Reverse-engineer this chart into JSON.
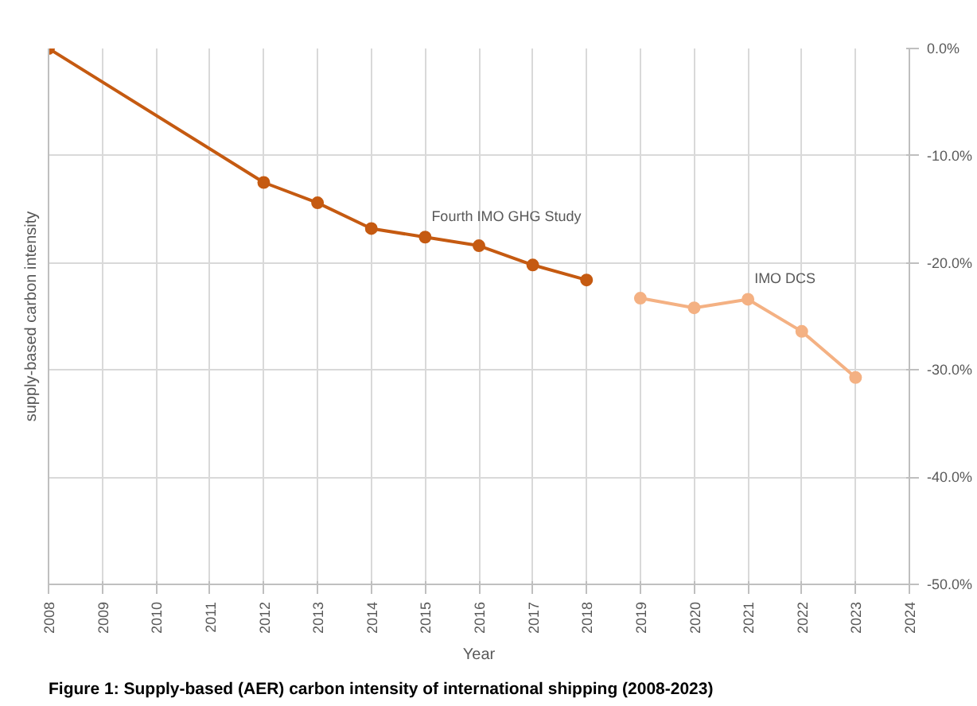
{
  "chart_data": {
    "type": "line",
    "title": "Figure 1: Supply-based (AER) carbon intensity of international shipping (2008-2023)",
    "xlabel": "Year",
    "ylabel": "supply-based carbon intensity",
    "series": [
      {
        "name": "Fourth IMO GHG Study",
        "color": "#c55a11",
        "x": [
          2008,
          2012,
          2013,
          2014,
          2015,
          2016,
          2017,
          2018
        ],
        "values": [
          0,
          -12.5,
          -14.4,
          -16.8,
          -17.6,
          -18.4,
          -20.2,
          -21.6
        ]
      },
      {
        "name": "IMO DCS",
        "color": "#f4b183",
        "x": [
          2019,
          2020,
          2021,
          2022,
          2023
        ],
        "values": [
          -23.3,
          -24.2,
          -23.4,
          -26.4,
          -30.7
        ]
      }
    ],
    "xlim": [
      2008,
      2024
    ],
    "xticks": [
      2008,
      2009,
      2010,
      2011,
      2012,
      2013,
      2014,
      2015,
      2016,
      2017,
      2018,
      2019,
      2020,
      2021,
      2022,
      2023,
      2024
    ],
    "ylim": [
      -50,
      0
    ],
    "yticks": [
      {
        "value": 0,
        "label": "0.0%"
      },
      {
        "value": -10,
        "label": "-10.0%"
      },
      {
        "value": -20,
        "label": "-20.0%"
      },
      {
        "value": -30,
        "label": "-30.0%"
      },
      {
        "value": -40,
        "label": "-40.0%"
      },
      {
        "value": -50,
        "label": "-50.0%"
      }
    ],
    "grid": true,
    "marker": "circle",
    "line_style": "solid"
  }
}
